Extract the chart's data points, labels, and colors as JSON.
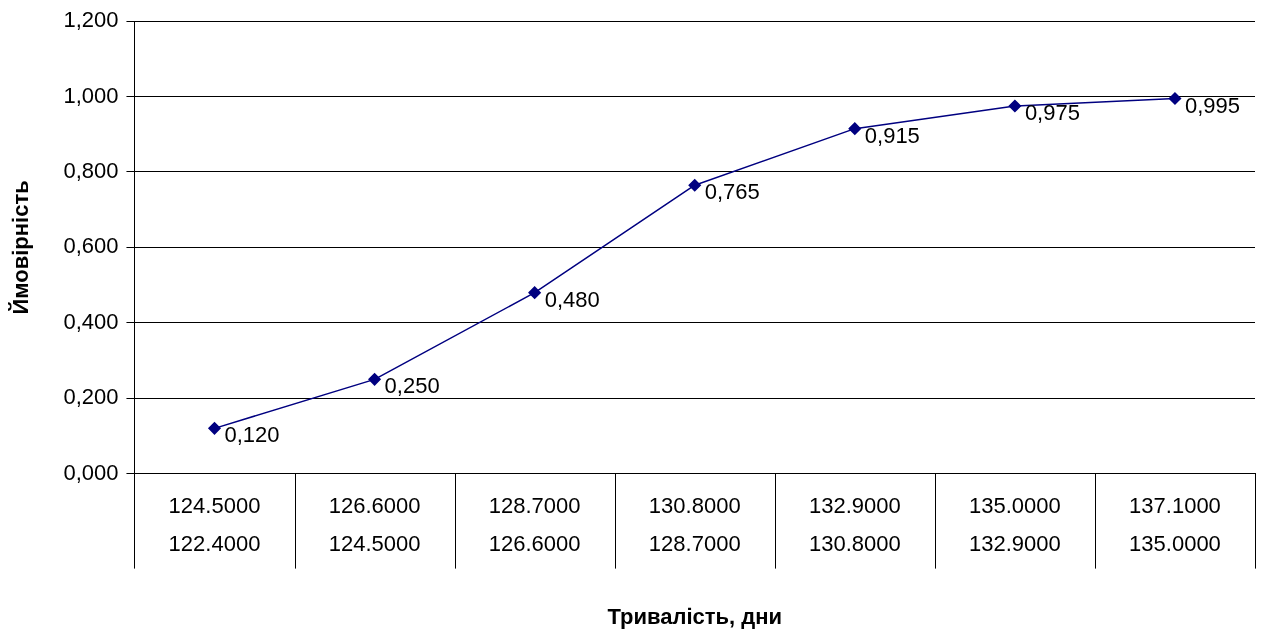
{
  "chart_data": {
    "type": "line",
    "xlabel": "Тривалість, дни",
    "ylabel": "Ймовірність",
    "categories": [
      "124.5000\n122.4000",
      "126.6000\n124.5000",
      "128.7000\n126.6000",
      "130.8000\n128.7000",
      "132.9000\n130.8000",
      "135.0000\n132.9000",
      "137.1000\n135.0000"
    ],
    "series": [
      {
        "color": "#000080",
        "values": [
          0.12,
          0.25,
          0.48,
          0.765,
          0.915,
          0.975,
          0.995
        ],
        "value_labels": [
          "0,120",
          "0,250",
          "0,480",
          "0,765",
          "0,915",
          "0,975",
          "0,995"
        ]
      }
    ],
    "ylim": [
      0,
      1.2
    ],
    "yticks": [
      {
        "value": 0,
        "label": "0,000"
      },
      {
        "value": 0.2,
        "label": "0,200"
      },
      {
        "value": 0.4,
        "label": "0,400"
      },
      {
        "value": 0.6,
        "label": "0,600"
      },
      {
        "value": 0.8,
        "label": "0,800"
      },
      {
        "value": 1,
        "label": "1,000"
      },
      {
        "value": 1.2,
        "label": "1,200"
      }
    ],
    "grid": "y",
    "legend": false,
    "marker": "diamond",
    "line_style": "solid"
  }
}
